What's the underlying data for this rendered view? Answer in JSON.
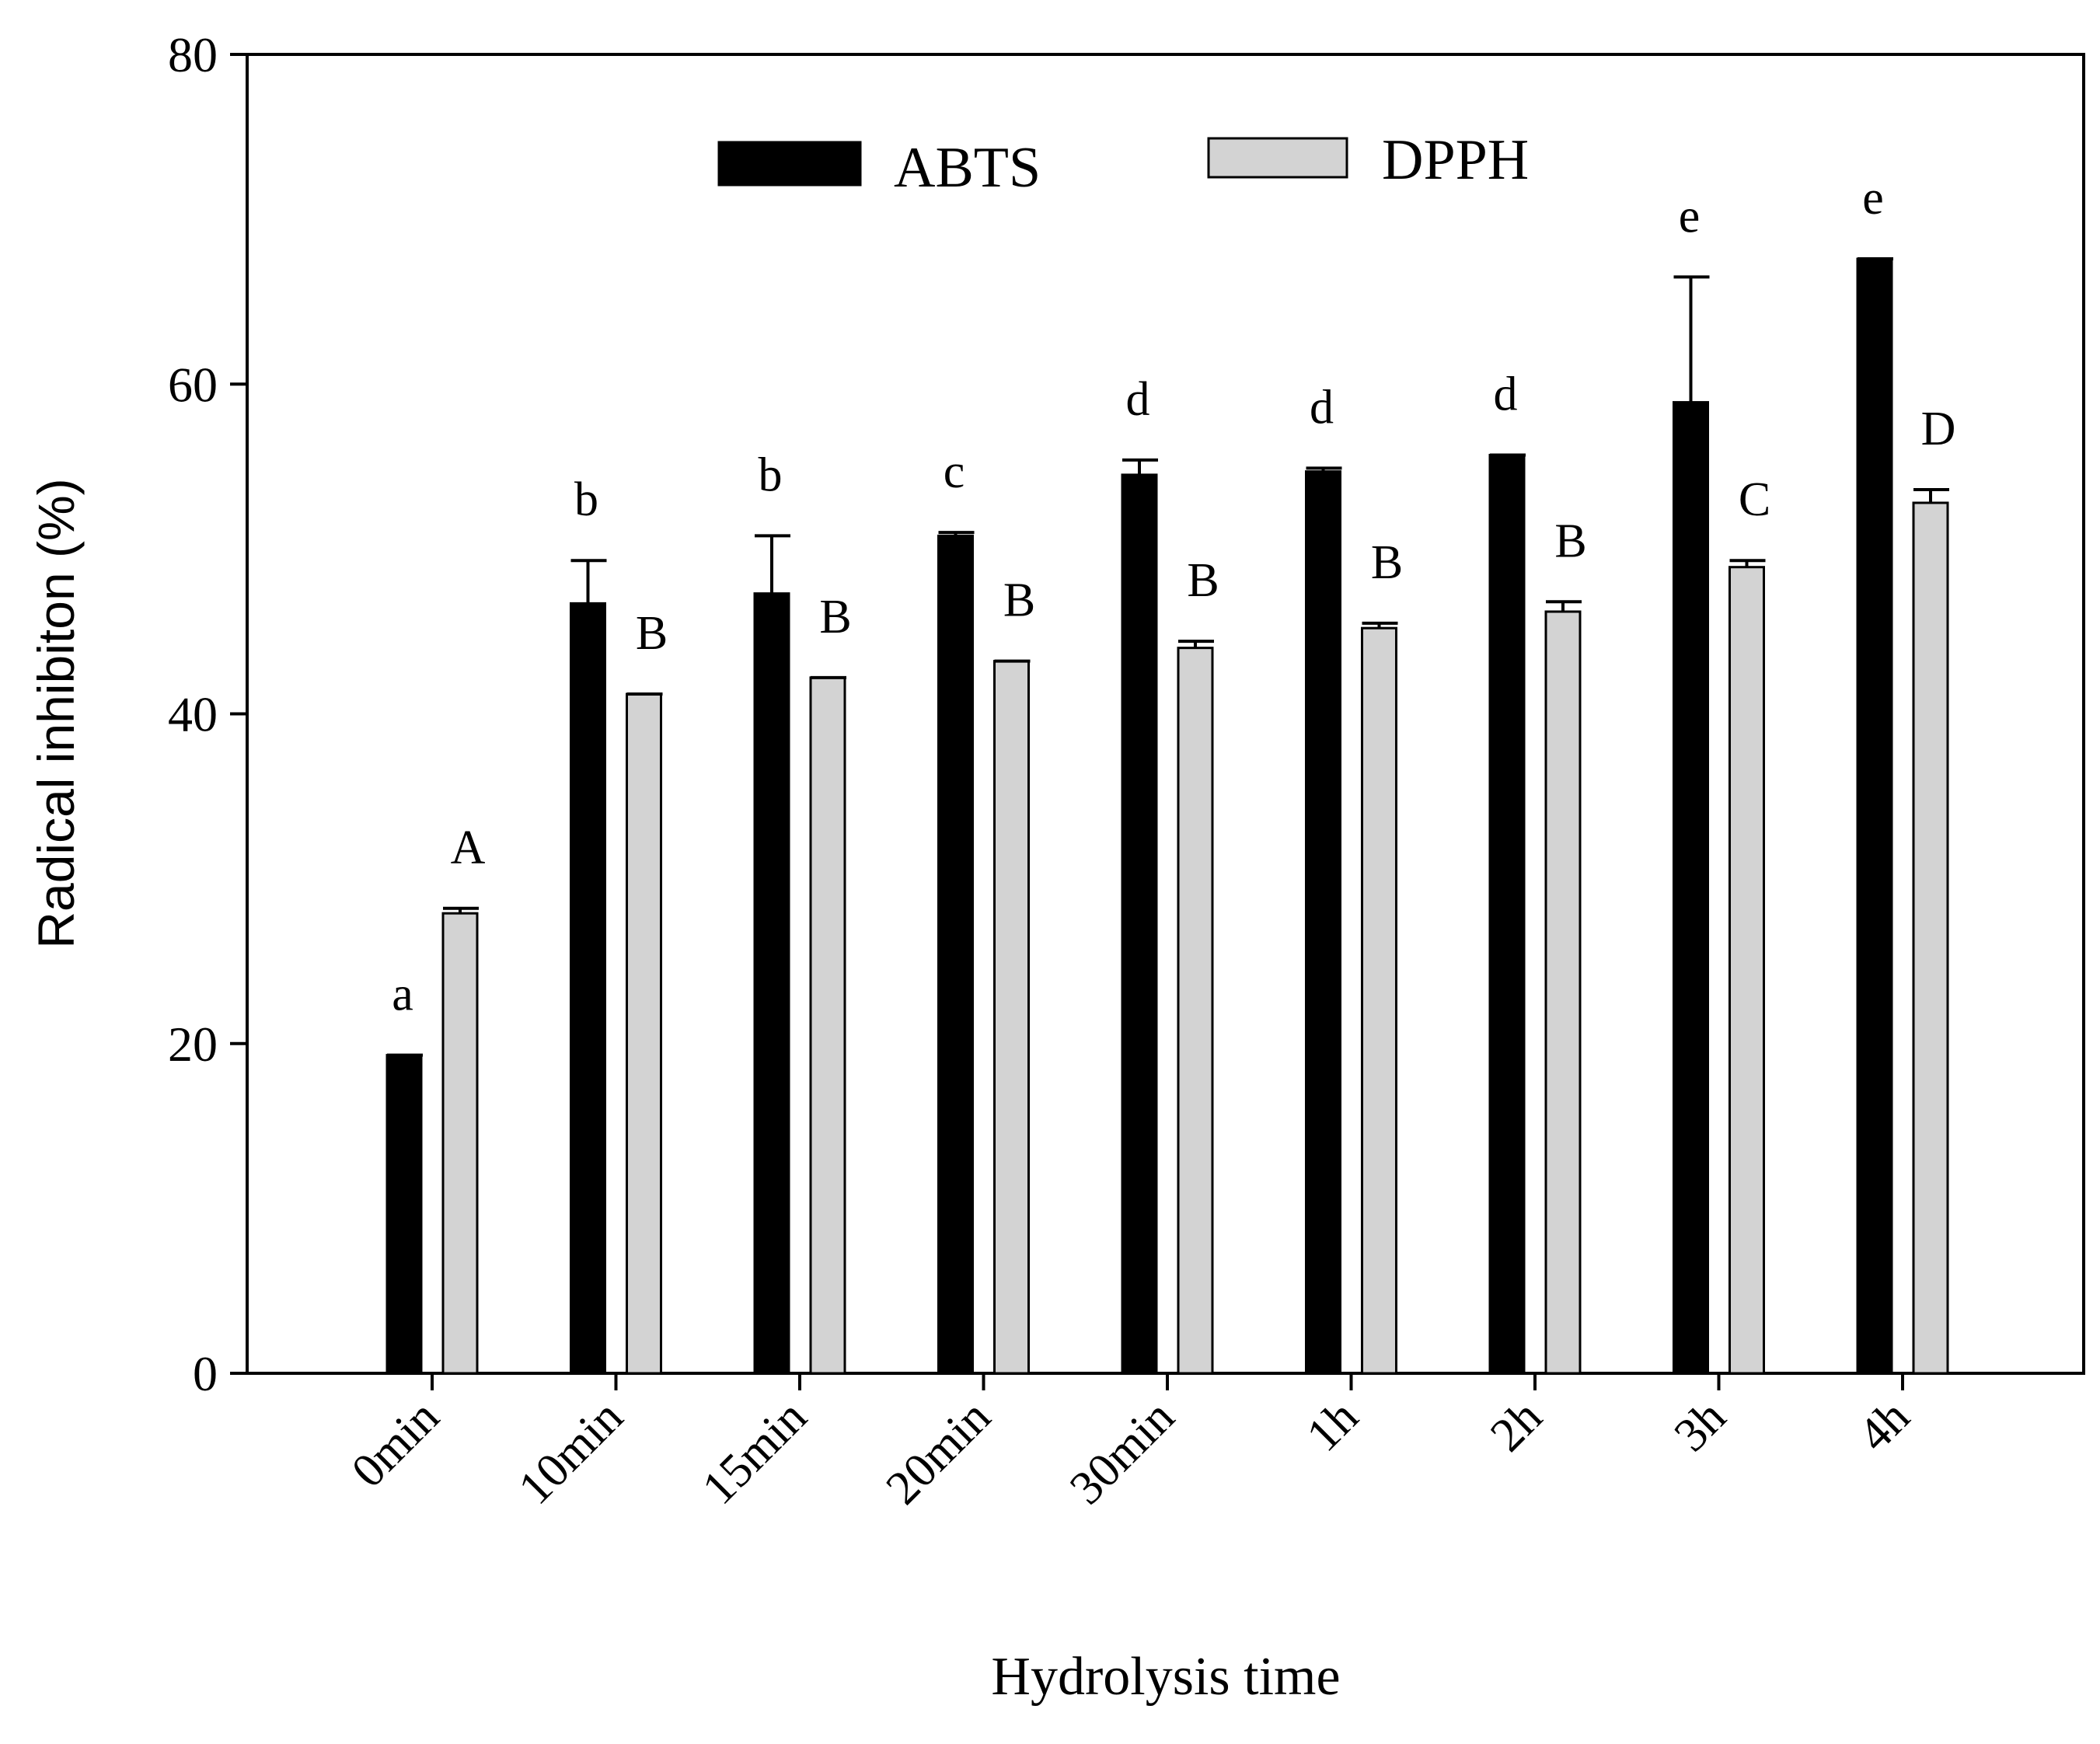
{
  "chart_data": {
    "type": "bar",
    "title": "",
    "xlabel": "Hydrolysis time",
    "ylabel": "Radical inhibiton (%)",
    "ylim": [
      0,
      80
    ],
    "yticks": [
      "0",
      "20",
      "40",
      "60",
      "80"
    ],
    "categories": [
      "0min",
      "10min",
      "15min",
      "20min",
      "30min",
      "1h",
      "2h",
      "3h",
      "4h"
    ],
    "legend_position": "top-center",
    "series": [
      {
        "name": "ABTS",
        "color": "#000000",
        "values": [
          19.3,
          46.7,
          47.3,
          50.8,
          54.5,
          54.7,
          55.7,
          58.9,
          67.6
        ],
        "errors": [
          0.0,
          2.6,
          3.5,
          0.2,
          0.9,
          0.2,
          0.0,
          7.6,
          0.0
        ],
        "letters": [
          "a",
          "b",
          "b",
          "c",
          "d",
          "d",
          "d",
          "e",
          "e"
        ]
      },
      {
        "name": "DPPH",
        "color": "#d3d3d3",
        "values": [
          27.9,
          41.2,
          42.2,
          43.2,
          44.0,
          45.2,
          46.2,
          48.9,
          52.8
        ],
        "errors": [
          0.3,
          0.0,
          0.0,
          0.0,
          0.4,
          0.3,
          0.6,
          0.4,
          0.8
        ],
        "letters": [
          "A",
          "B",
          "B",
          "B",
          "B",
          "B",
          "B",
          "C",
          "D"
        ]
      }
    ]
  }
}
